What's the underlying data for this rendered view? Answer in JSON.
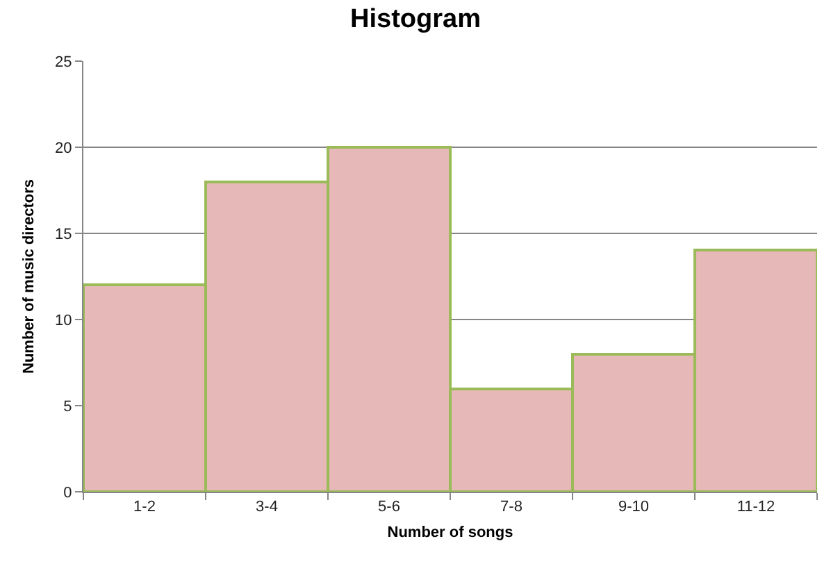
{
  "chart_data": {
    "type": "bar",
    "title": "Histogram",
    "xlabel": "Number of songs",
    "ylabel": "Number of music directors",
    "categories": [
      "1-2",
      "3-4",
      "5-6",
      "7-8",
      "9-10",
      "11-12"
    ],
    "values": [
      12,
      18,
      20,
      6,
      8,
      14
    ],
    "color": "#e6b8b7",
    "ylim": [
      0,
      25
    ],
    "yticks": [
      0,
      5,
      10,
      15,
      20,
      25
    ],
    "grid": "y"
  }
}
